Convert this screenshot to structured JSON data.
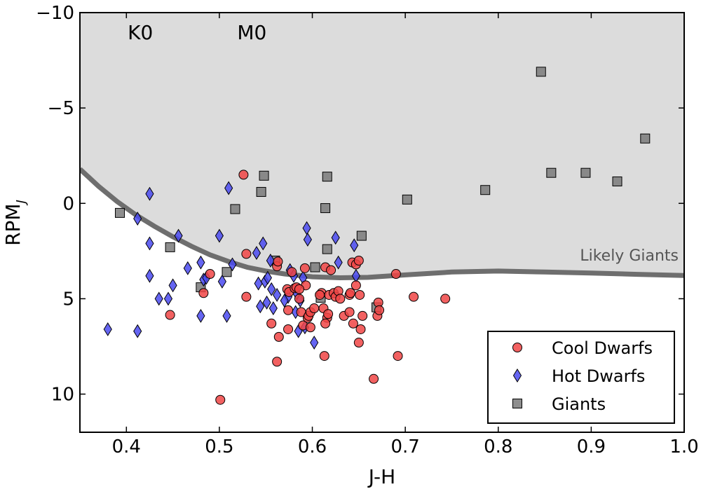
{
  "chart_data": {
    "type": "scatter",
    "xlabel": "J-H",
    "ylabel": "RPM",
    "ylabel_subscript": "J",
    "xlim": [
      0.35,
      1.0
    ],
    "ylim": [
      -10,
      12
    ],
    "y_inverted": true,
    "x_ticks": [
      0.4,
      0.5,
      0.6,
      0.7,
      0.8,
      0.9,
      1.0
    ],
    "x_tick_labels": [
      "0.4",
      "0.5",
      "0.6",
      "0.7",
      "0.8",
      "0.9",
      "1.0"
    ],
    "y_ticks": [
      -10,
      -5,
      0,
      5,
      10
    ],
    "y_tick_labels": [
      "−10",
      "−5",
      "0",
      "5",
      "10"
    ],
    "annotations": [
      {
        "text": "K0",
        "x": 0.415,
        "y": -8.6
      },
      {
        "text": "M0",
        "x": 0.535,
        "y": -8.6
      }
    ],
    "region_label": "Likely Giants",
    "region_colors": {
      "fill": "#dcdcdc",
      "curve": "#6e6e6e"
    },
    "boundary_curve": {
      "x": [
        0.35,
        0.37,
        0.39,
        0.41,
        0.43,
        0.45,
        0.47,
        0.49,
        0.51,
        0.53,
        0.55,
        0.57,
        0.6,
        0.63,
        0.66,
        0.7,
        0.75,
        0.8,
        0.85,
        0.9,
        0.95,
        1.0
      ],
      "y": [
        -1.8,
        -0.9,
        -0.1,
        0.6,
        1.2,
        1.75,
        2.25,
        2.7,
        3.05,
        3.35,
        3.55,
        3.7,
        3.85,
        3.9,
        3.88,
        3.75,
        3.6,
        3.55,
        3.6,
        3.65,
        3.72,
        3.78
      ]
    },
    "series": [
      {
        "name": "Cool Dwarfs",
        "marker": "circle",
        "color": "#f04545",
        "points": [
          [
            0.526,
            -1.5
          ],
          [
            0.529,
            2.65
          ],
          [
            0.529,
            4.9
          ],
          [
            0.49,
            3.7
          ],
          [
            0.483,
            4.7
          ],
          [
            0.447,
            5.85
          ],
          [
            0.501,
            10.3
          ],
          [
            0.562,
            3.3
          ],
          [
            0.563,
            3.05
          ],
          [
            0.573,
            4.5
          ],
          [
            0.575,
            4.65
          ],
          [
            0.574,
            5.6
          ],
          [
            0.574,
            6.6
          ],
          [
            0.578,
            3.6
          ],
          [
            0.581,
            4.45
          ],
          [
            0.583,
            4.4
          ],
          [
            0.556,
            6.3
          ],
          [
            0.564,
            7.0
          ],
          [
            0.562,
            8.3
          ],
          [
            0.586,
            5.0
          ],
          [
            0.588,
            5.7
          ],
          [
            0.592,
            3.4
          ],
          [
            0.593,
            4.3
          ],
          [
            0.59,
            6.4
          ],
          [
            0.595,
            6.0
          ],
          [
            0.596,
            5.9
          ],
          [
            0.598,
            5.7
          ],
          [
            0.598,
            6.5
          ],
          [
            0.602,
            5.5
          ],
          [
            0.61,
            4.7
          ],
          [
            0.612,
            5.5
          ],
          [
            0.614,
            3.35
          ],
          [
            0.613,
            8.0
          ],
          [
            0.616,
            6.0
          ],
          [
            0.614,
            6.3
          ],
          [
            0.617,
            5.8
          ],
          [
            0.618,
            4.8
          ],
          [
            0.62,
            3.5
          ],
          [
            0.623,
            4.7
          ],
          [
            0.625,
            4.9
          ],
          [
            0.628,
            4.6
          ],
          [
            0.634,
            5.9
          ],
          [
            0.64,
            4.8
          ],
          [
            0.641,
            4.7
          ],
          [
            0.64,
            5.7
          ],
          [
            0.643,
            3.1
          ],
          [
            0.644,
            6.3
          ],
          [
            0.647,
            3.2
          ],
          [
            0.647,
            4.3
          ],
          [
            0.65,
            3.0
          ],
          [
            0.65,
            7.3
          ],
          [
            0.652,
            6.6
          ],
          [
            0.654,
            5.9
          ],
          [
            0.651,
            4.8
          ],
          [
            0.666,
            9.2
          ],
          [
            0.671,
            5.2
          ],
          [
            0.67,
            5.9
          ],
          [
            0.672,
            5.6
          ],
          [
            0.69,
            3.7
          ],
          [
            0.692,
            8.0
          ],
          [
            0.709,
            4.9
          ],
          [
            0.743,
            5.0
          ],
          [
            0.586,
            4.5
          ],
          [
            0.608,
            4.8
          ],
          [
            0.63,
            5.0
          ]
        ]
      },
      {
        "name": "Hot Dwarfs",
        "marker": "diamond",
        "color": "#4a4af0",
        "points": [
          [
            0.38,
            6.6
          ],
          [
            0.412,
            6.7
          ],
          [
            0.412,
            0.8
          ],
          [
            0.425,
            -0.5
          ],
          [
            0.425,
            2.1
          ],
          [
            0.425,
            3.8
          ],
          [
            0.435,
            5.0
          ],
          [
            0.445,
            5.0
          ],
          [
            0.45,
            4.3
          ],
          [
            0.456,
            1.7
          ],
          [
            0.466,
            3.4
          ],
          [
            0.48,
            3.1
          ],
          [
            0.48,
            5.9
          ],
          [
            0.483,
            4.0
          ],
          [
            0.486,
            3.9
          ],
          [
            0.5,
            1.7
          ],
          [
            0.503,
            4.1
          ],
          [
            0.508,
            5.9
          ],
          [
            0.51,
            -0.8
          ],
          [
            0.514,
            3.2
          ],
          [
            0.54,
            2.6
          ],
          [
            0.542,
            4.2
          ],
          [
            0.544,
            5.4
          ],
          [
            0.547,
            2.1
          ],
          [
            0.549,
            4.1
          ],
          [
            0.551,
            5.2
          ],
          [
            0.552,
            3.9
          ],
          [
            0.555,
            3.0
          ],
          [
            0.556,
            4.5
          ],
          [
            0.558,
            5.5
          ],
          [
            0.562,
            4.8
          ],
          [
            0.574,
            4.9
          ],
          [
            0.576,
            3.5
          ],
          [
            0.58,
            3.8
          ],
          [
            0.582,
            5.7
          ],
          [
            0.585,
            6.7
          ],
          [
            0.587,
            5.1
          ],
          [
            0.59,
            3.9
          ],
          [
            0.592,
            6.5
          ],
          [
            0.594,
            1.3
          ],
          [
            0.595,
            1.9
          ],
          [
            0.602,
            7.3
          ],
          [
            0.625,
            1.8
          ],
          [
            0.628,
            3.1
          ],
          [
            0.645,
            2.2
          ],
          [
            0.647,
            3.8
          ],
          [
            0.583,
            4.7
          ],
          [
            0.57,
            5.1
          ]
        ]
      },
      {
        "name": "Giants",
        "marker": "square",
        "color": "#7a7a7a",
        "points": [
          [
            0.393,
            0.5
          ],
          [
            0.447,
            2.3
          ],
          [
            0.48,
            4.4
          ],
          [
            0.508,
            3.6
          ],
          [
            0.517,
            0.3
          ],
          [
            0.545,
            -0.6
          ],
          [
            0.548,
            -1.45
          ],
          [
            0.56,
            3.0
          ],
          [
            0.603,
            3.35
          ],
          [
            0.609,
            4.95
          ],
          [
            0.614,
            0.25
          ],
          [
            0.616,
            -1.4
          ],
          [
            0.616,
            2.4
          ],
          [
            0.653,
            1.7
          ],
          [
            0.669,
            5.45
          ],
          [
            0.702,
            -0.2
          ],
          [
            0.786,
            -0.7
          ],
          [
            0.846,
            -6.9
          ],
          [
            0.857,
            -1.6
          ],
          [
            0.894,
            -1.6
          ],
          [
            0.928,
            -1.15
          ],
          [
            0.958,
            -3.4
          ]
        ]
      }
    ],
    "legend": {
      "location": "lower-right",
      "entries": [
        "Cool Dwarfs",
        "Hot Dwarfs",
        "Giants"
      ]
    }
  }
}
